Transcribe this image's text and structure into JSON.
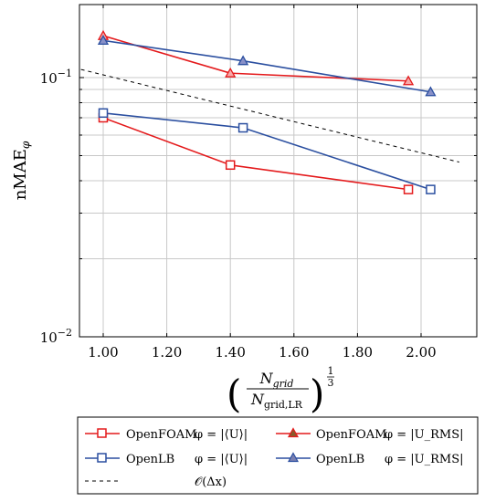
{
  "chart_data": {
    "type": "line",
    "title": "",
    "xlabel": {
      "numerator_base": "N",
      "numerator_sub": "grid",
      "denominator_base": "N",
      "denominator_sub": "grid,LR",
      "exponent_num": "1",
      "exponent_den": "3"
    },
    "ylabel": {
      "base": "nMAE",
      "sub": "φ"
    },
    "xlim": [
      0.93,
      2.12
    ],
    "ylim": [
      0.01,
      0.2
    ],
    "yscale": "log",
    "grid": true,
    "legend_position": "bottom",
    "x_ticks": [
      1.0,
      1.2,
      1.4,
      1.6,
      1.8,
      2.0
    ],
    "x_tick_labels": [
      "1.00",
      "1.20",
      "1.40",
      "1.60",
      "1.80",
      "2.00"
    ],
    "y_tick_labels": [
      {
        "value": 0.1,
        "base": "10",
        "exp": "−1"
      },
      {
        "value": 0.01,
        "base": "10",
        "exp": "−2"
      }
    ],
    "series": [
      {
        "name": {
          "solver": "OpenFOAM",
          "phi": "φ = |⟨U⟩|"
        },
        "color": "#e41a1c",
        "marker": "square",
        "x": [
          1.0,
          1.4,
          1.96
        ],
        "y": [
          0.07,
          0.046,
          0.037
        ]
      },
      {
        "name": {
          "solver": "OpenFOAM",
          "phi": "φ = |U_RMS|"
        },
        "color": "#e41a1c",
        "marker": "triangle",
        "x": [
          1.0,
          1.4,
          1.96
        ],
        "y": [
          0.145,
          0.104,
          0.097
        ]
      },
      {
        "name": {
          "solver": "OpenLB",
          "phi": "φ = |⟨U⟩|"
        },
        "color": "#2b4fa0",
        "marker": "square",
        "x": [
          1.0,
          1.44,
          2.03
        ],
        "y": [
          0.073,
          0.064,
          0.037
        ]
      },
      {
        "name": {
          "solver": "OpenLB",
          "phi": "φ = |U_RMS|"
        },
        "color": "#2b4fa0",
        "marker": "triangle",
        "x": [
          1.0,
          1.44,
          2.03
        ],
        "y": [
          0.139,
          0.116,
          0.088
        ]
      },
      {
        "name": {
          "solver": "",
          "phi": "𝒪(Δx)"
        },
        "color": "#000000",
        "marker": "none",
        "dashed": true,
        "x": [
          0.93,
          2.12
        ],
        "y": [
          0.1075,
          0.0472
        ]
      }
    ]
  }
}
